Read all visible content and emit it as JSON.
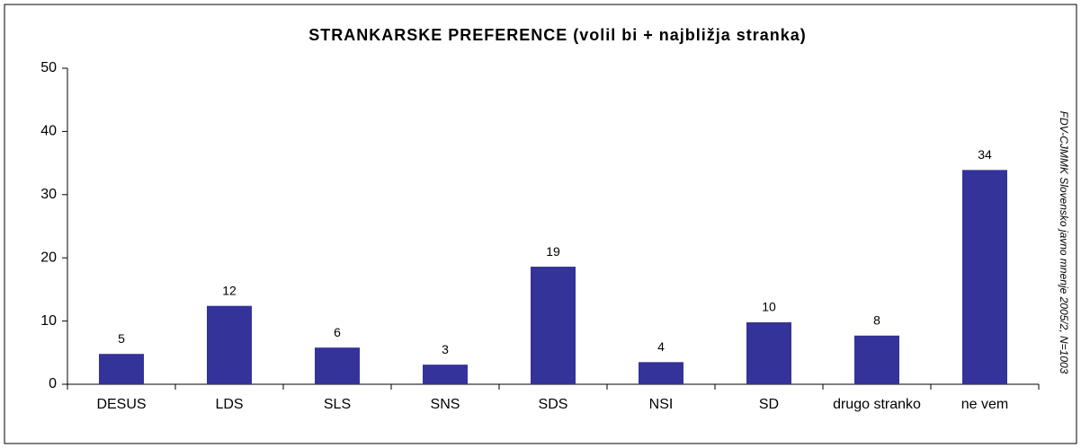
{
  "chart_data": {
    "type": "bar",
    "title": "STRANKARSKE PREFERENCE (volil bi + najbližja stranka)",
    "categories": [
      "DESUS",
      "LDS",
      "SLS",
      "SNS",
      "SDS",
      "NSI",
      "SD",
      "drugo stranko",
      "ne vem"
    ],
    "values": [
      4.8,
      12.4,
      5.8,
      3.1,
      18.6,
      3.5,
      9.8,
      7.7,
      33.9
    ],
    "value_labels": [
      "5",
      "12",
      "6",
      "3",
      "19",
      "4",
      "10",
      "8",
      "34"
    ],
    "color": "#333399",
    "ylim": [
      0,
      50
    ],
    "yticks": [
      0,
      10,
      20,
      30,
      40,
      50
    ],
    "grid": false,
    "source": "FDV-CJMMK Slovensko javno mnenje 2005/2, N=1003"
  }
}
